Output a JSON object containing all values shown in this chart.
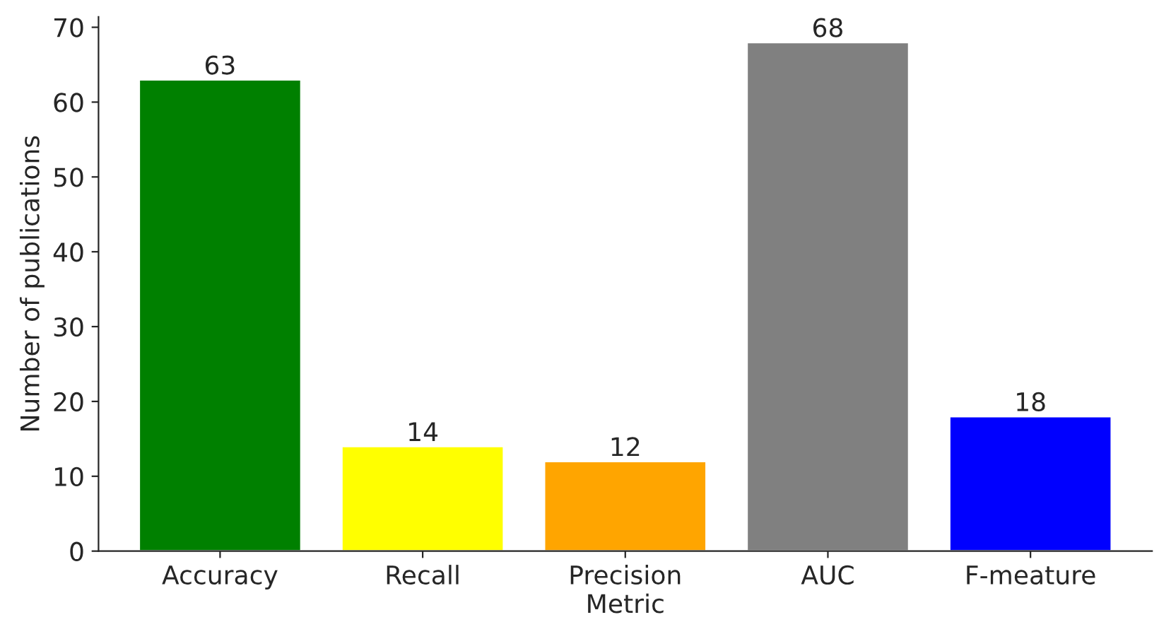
{
  "chart_data": {
    "type": "bar",
    "xlabel": "Metric",
    "ylabel": "Number of publications",
    "categories": [
      "Accuracy",
      "Recall",
      "Precision",
      "AUC",
      "F-meature"
    ],
    "values": [
      63,
      14,
      12,
      68,
      18
    ],
    "colors": [
      "#008000",
      "#ffff00",
      "#ffa500",
      "#808080",
      "#0000ff"
    ],
    "ylim": [
      0,
      71.4
    ],
    "yticks": [
      0,
      10,
      20,
      30,
      40,
      50,
      60,
      70
    ],
    "data_labels": true,
    "grid": false,
    "legend": false
  }
}
